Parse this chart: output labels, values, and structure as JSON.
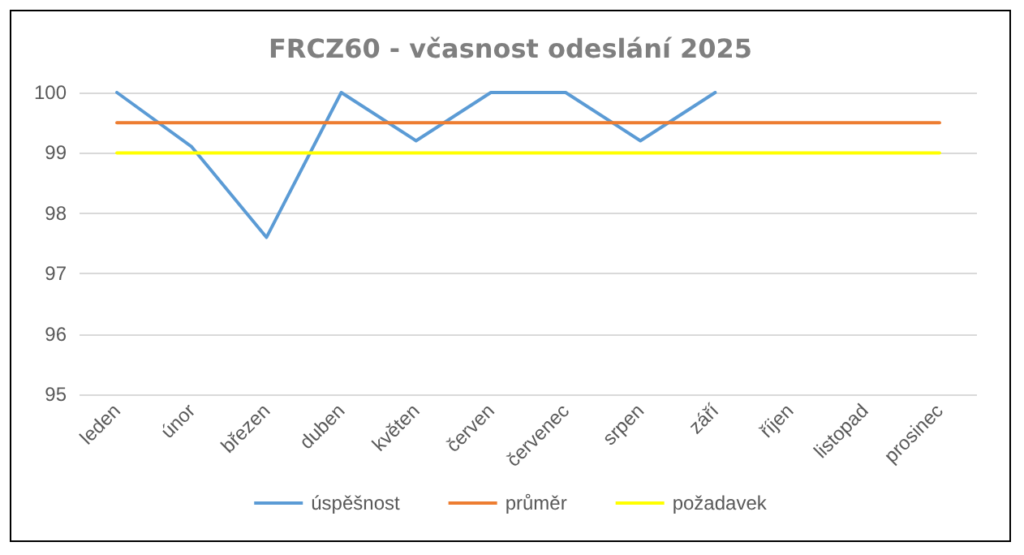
{
  "chart_data": {
    "type": "line",
    "title": "FRCZ60 - včasnost odeslání 2025",
    "categories": [
      "leden",
      "únor",
      "březen",
      "duben",
      "květen",
      "červen",
      "červenec",
      "srpen",
      "září",
      "říjen",
      "listopad",
      "prosinec"
    ],
    "series": [
      {
        "name": "úspěšnost",
        "color": "#5b9bd5",
        "values": [
          100,
          99.1,
          97.6,
          100,
          99.2,
          100,
          100,
          99.2,
          100,
          null,
          null,
          null
        ]
      },
      {
        "name": "průměr",
        "color": "#ed7d31",
        "values": [
          99.5,
          99.5,
          99.5,
          99.5,
          99.5,
          99.5,
          99.5,
          99.5,
          99.5,
          99.5,
          99.5,
          99.5
        ]
      },
      {
        "name": "požadavek",
        "color": "#ffff00",
        "values": [
          99,
          99,
          99,
          99,
          99,
          99,
          99,
          99,
          99,
          99,
          99,
          99
        ]
      }
    ],
    "ylim": [
      95,
      100
    ],
    "yticks": [
      95,
      96,
      97,
      98,
      99,
      100
    ],
    "grid": "y",
    "legend": "bottom",
    "marker": "none",
    "line_style": "solid"
  }
}
